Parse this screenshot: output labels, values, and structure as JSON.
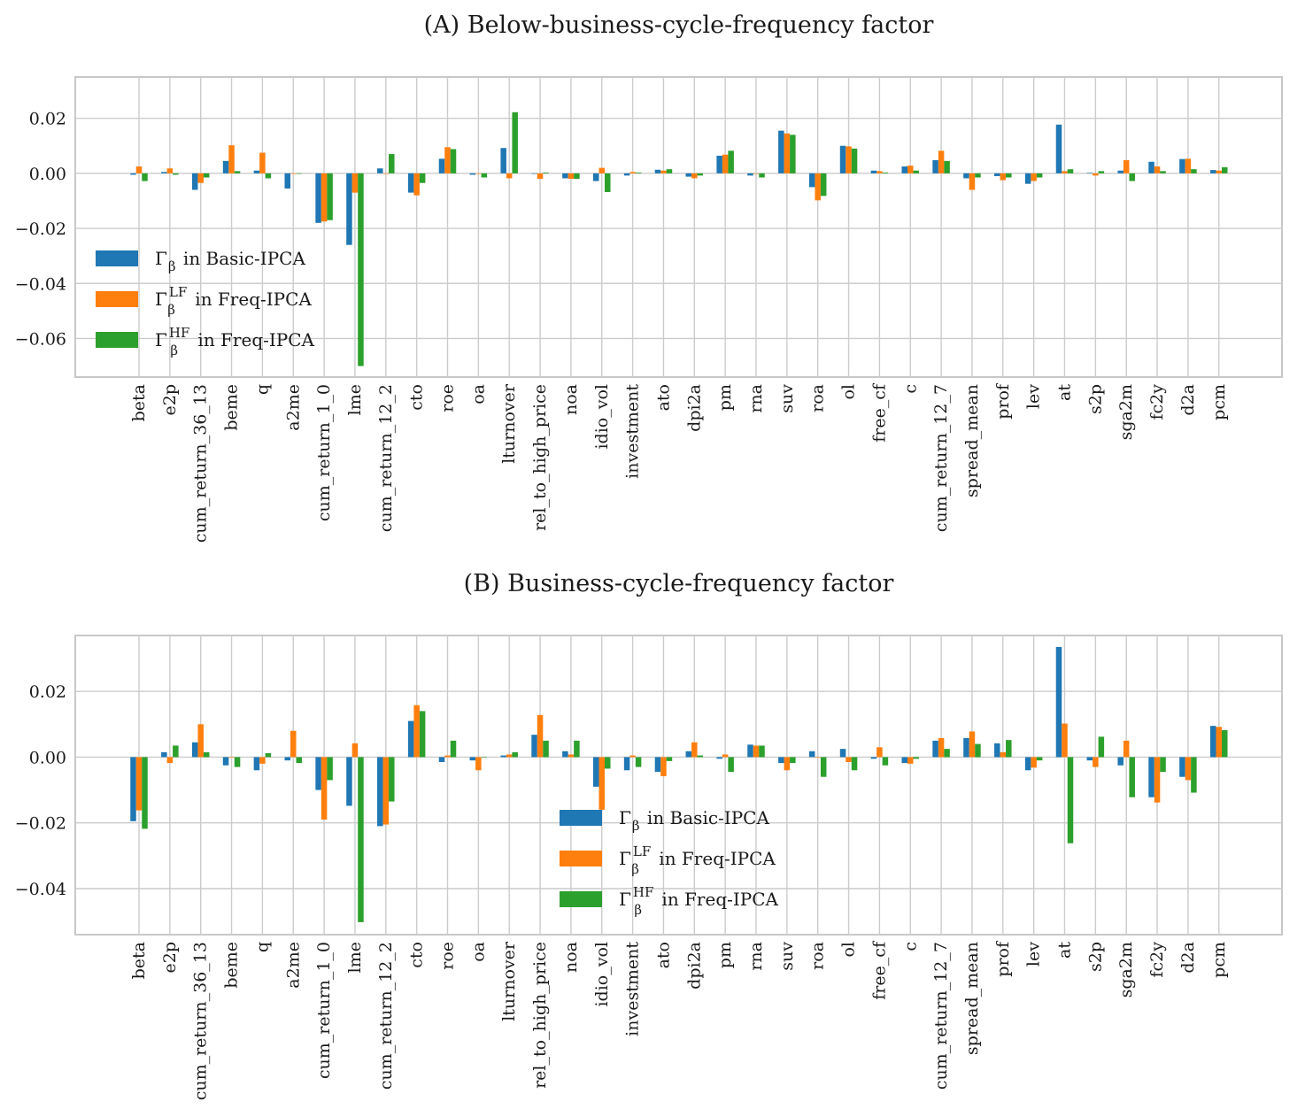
{
  "figure": {
    "colors": {
      "basic": "#1f77b4",
      "lf": "#ff7f0e",
      "hf": "#2ca02c",
      "grid": "#cccccc",
      "frame": "#c8c8c8"
    }
  },
  "chart_data": [
    {
      "type": "bar",
      "title": "(A) Below-business-cycle-frequency factor",
      "categories": [
        "beta",
        "e2p",
        "cum_return_36_13",
        "beme",
        "q",
        "a2me",
        "cum_return_1_0",
        "lme",
        "cum_return_12_2",
        "cto",
        "roe",
        "oa",
        "lturnover",
        "rel_to_high_price",
        "noa",
        "idio_vol",
        "investment",
        "ato",
        "dpi2a",
        "pm",
        "rna",
        "suv",
        "roa",
        "ol",
        "free_cf",
        "c",
        "cum_return_12_7",
        "spread_mean",
        "prof",
        "lev",
        "at",
        "s2p",
        "sga2m",
        "fc2y",
        "d2a",
        "pcm"
      ],
      "ylim": [
        -0.074,
        0.035
      ],
      "yticks": [
        0.02,
        0.0,
        -0.02,
        -0.04,
        -0.06
      ],
      "ytick_labels": [
        "0.02",
        "0.00",
        "−0.02",
        "−0.04",
        "−0.06"
      ],
      "grid": true,
      "legend": {
        "placement": "left",
        "entries": [
          {
            "symbol": "Γ",
            "sub": "β",
            "sup": "",
            "text": "in Basic-IPCA"
          },
          {
            "symbol": "Γ",
            "sub": "β",
            "sup": "LF",
            "text": "in Freq-IPCA"
          },
          {
            "symbol": "Γ",
            "sub": "β",
            "sup": "HF",
            "text": "in Freq-IPCA"
          }
        ]
      },
      "series": [
        {
          "values": [
            -0.0005,
            0.0005,
            -0.006,
            0.0045,
            0.001,
            -0.0055,
            -0.018,
            -0.026,
            0.0018,
            -0.007,
            0.0053,
            -0.0005,
            0.0092,
            0.0,
            -0.0018,
            -0.0028,
            -0.0008,
            0.0013,
            -0.0012,
            0.0064,
            -0.0008,
            0.0155,
            -0.005,
            0.01,
            0.001,
            0.0025,
            0.0048,
            -0.0018,
            -0.001,
            -0.0038,
            0.0177,
            0.0002,
            0.001,
            0.0042,
            0.0052,
            0.0012
          ]
        },
        {
          "values": [
            0.0025,
            0.0018,
            -0.0035,
            0.0102,
            0.0075,
            0.0,
            -0.0175,
            -0.007,
            0.0,
            -0.008,
            0.0095,
            0.0,
            -0.0018,
            -0.002,
            -0.002,
            0.002,
            0.0005,
            0.001,
            -0.0018,
            0.0068,
            0.0,
            0.0145,
            -0.0098,
            0.0098,
            0.0008,
            0.0028,
            0.0082,
            -0.006,
            -0.0025,
            -0.0028,
            0.0008,
            -0.0008,
            0.0048,
            0.0025,
            0.0053,
            0.001
          ]
        },
        {
          "values": [
            -0.0028,
            -0.0005,
            -0.0015,
            0.0008,
            -0.0018,
            0.0,
            -0.017,
            -0.07,
            0.007,
            -0.0035,
            0.0088,
            -0.0015,
            0.0222,
            0.0003,
            -0.002,
            -0.0068,
            0.0003,
            0.0015,
            -0.0008,
            0.0082,
            -0.0015,
            0.014,
            -0.0082,
            0.009,
            0.0003,
            0.001,
            0.0045,
            -0.0015,
            -0.0015,
            -0.0015,
            0.0015,
            0.0008,
            -0.0028,
            0.0008,
            0.0015,
            0.0022
          ]
        }
      ]
    },
    {
      "type": "bar",
      "title": "(B) Business-cycle-frequency factor",
      "categories": [
        "beta",
        "e2p",
        "cum_return_36_13",
        "beme",
        "q",
        "a2me",
        "cum_return_1_0",
        "lme",
        "cum_return_12_2",
        "cto",
        "roe",
        "oa",
        "lturnover",
        "rel_to_high_price",
        "noa",
        "idio_vol",
        "investment",
        "ato",
        "dpi2a",
        "pm",
        "rna",
        "suv",
        "roa",
        "ol",
        "free_cf",
        "c",
        "cum_return_12_7",
        "spread_mean",
        "prof",
        "lev",
        "at",
        "s2p",
        "sga2m",
        "fc2y",
        "d2a",
        "pcm"
      ],
      "ylim": [
        -0.054,
        0.037
      ],
      "yticks": [
        0.02,
        0.0,
        -0.02,
        -0.04
      ],
      "ytick_labels": [
        "0.02",
        "0.00",
        "−0.02",
        "−0.04"
      ],
      "grid": true,
      "legend": {
        "placement": "lower center",
        "entries": [
          {
            "symbol": "Γ",
            "sub": "β",
            "sup": "",
            "text": "in Basic-IPCA"
          },
          {
            "symbol": "Γ",
            "sub": "β",
            "sup": "LF",
            "text": "in Freq-IPCA"
          },
          {
            "symbol": "Γ",
            "sub": "β",
            "sup": "HF",
            "text": "in Freq-IPCA"
          }
        ]
      },
      "series": [
        {
          "values": [
            -0.0195,
            0.0015,
            0.0045,
            -0.0025,
            -0.004,
            -0.001,
            -0.01,
            -0.0148,
            -0.021,
            0.011,
            -0.0015,
            -0.001,
            0.0005,
            0.0068,
            0.0018,
            -0.009,
            -0.004,
            -0.0045,
            0.0018,
            -0.0005,
            0.0038,
            -0.0018,
            0.0018,
            0.0025,
            -0.0005,
            -0.0018,
            0.005,
            0.0058,
            0.0042,
            -0.004,
            0.0335,
            -0.001,
            -0.0025,
            -0.0122,
            -0.006,
            0.0095
          ]
        },
        {
          "values": [
            -0.0162,
            -0.0018,
            0.01,
            0.0,
            -0.002,
            0.008,
            -0.019,
            0.0042,
            -0.0205,
            0.0158,
            0.0005,
            -0.004,
            0.0008,
            0.0128,
            0.0008,
            -0.016,
            0.0005,
            -0.0058,
            0.0045,
            0.0008,
            0.0035,
            -0.004,
            0.0,
            -0.0015,
            0.003,
            -0.002,
            0.0058,
            0.0078,
            0.0015,
            -0.0032,
            0.0102,
            -0.003,
            0.005,
            -0.0138,
            -0.007,
            0.0092
          ]
        },
        {
          "values": [
            -0.0218,
            0.0035,
            0.0015,
            -0.003,
            0.0012,
            -0.0018,
            -0.007,
            -0.0502,
            -0.0135,
            0.014,
            0.005,
            0.0,
            0.0015,
            0.005,
            0.005,
            -0.0035,
            -0.003,
            -0.0012,
            0.0005,
            -0.0045,
            0.0035,
            -0.0018,
            -0.006,
            -0.004,
            -0.0025,
            -0.0005,
            0.0025,
            0.004,
            0.0052,
            -0.001,
            -0.0262,
            0.0062,
            -0.0122,
            -0.0045,
            -0.0108,
            0.0082
          ]
        }
      ]
    }
  ]
}
